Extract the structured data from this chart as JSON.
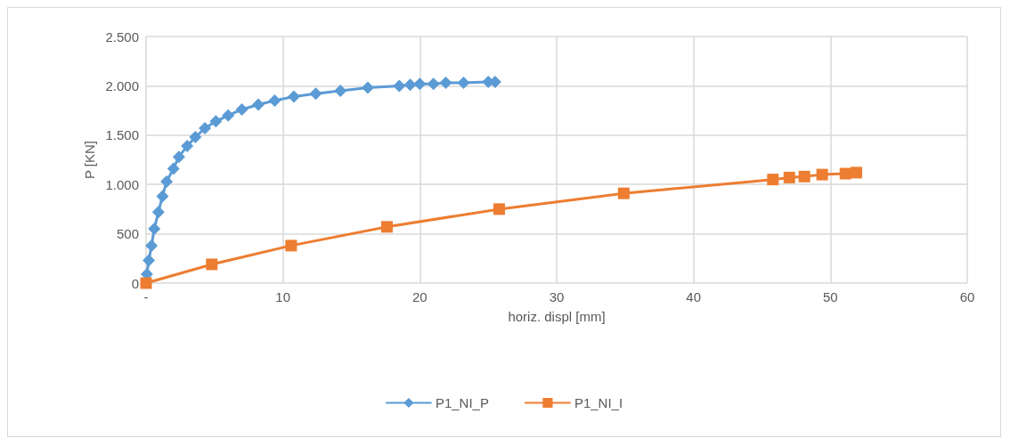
{
  "chart_data": {
    "type": "line",
    "xlabel": "horiz. displ [mm]",
    "ylabel": "P [KN]",
    "xlim": [
      0,
      60
    ],
    "xticks": [
      {
        "value": 0,
        "label": "-"
      },
      10,
      20,
      30,
      40,
      50,
      60
    ],
    "ylim": [
      0,
      2500
    ],
    "yticks": [
      0,
      {
        "value": 500,
        "label": "500"
      },
      {
        "value": 1000,
        "label": "1.000"
      },
      {
        "value": 1500,
        "label": "1.500"
      },
      {
        "value": 2000,
        "label": "2.000"
      },
      {
        "value": 2500,
        "label": "2.500"
      }
    ],
    "grid": true,
    "legend": "bottom",
    "line_style": "solid",
    "series": [
      {
        "name": "P1_NI_P",
        "color": "#5b9bd5",
        "marker": "diamond",
        "x": [
          0.06,
          0.2,
          0.4,
          0.6,
          0.9,
          1.2,
          1.5,
          2.0,
          2.4,
          3.0,
          3.6,
          4.3,
          5.1,
          6.0,
          7.0,
          8.2,
          9.4,
          10.8,
          12.4,
          14.2,
          16.2,
          18.5,
          19.3,
          20.0,
          21.0,
          21.9,
          23.2,
          25.0,
          25.5
        ],
        "values": [
          90,
          230,
          380,
          550,
          720,
          880,
          1030,
          1160,
          1280,
          1390,
          1480,
          1570,
          1640,
          1700,
          1760,
          1810,
          1850,
          1890,
          1920,
          1950,
          1980,
          2000,
          2010,
          2020,
          2020,
          2030,
          2030,
          2040,
          2040
        ]
      },
      {
        "name": "P1_NI_I",
        "color": "#ed7d31",
        "marker": "square",
        "x": [
          0,
          4.8,
          10.6,
          17.6,
          25.8,
          34.9,
          45.8,
          47.0,
          48.1,
          49.4,
          51.1,
          51.9
        ],
        "values": [
          0,
          190,
          380,
          570,
          750,
          910,
          1050,
          1070,
          1080,
          1100,
          1110,
          1120
        ]
      }
    ]
  }
}
